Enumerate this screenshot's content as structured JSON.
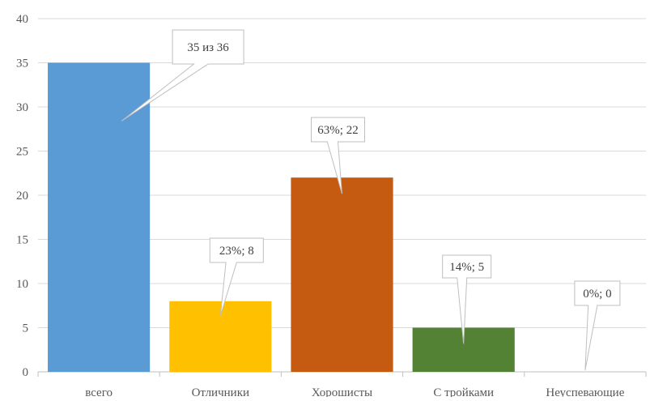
{
  "chart_data": {
    "type": "bar",
    "categories": [
      "всего",
      "Отличники",
      "Хорошисты",
      "С тройками",
      "Неуспевающие"
    ],
    "values": [
      35,
      8,
      22,
      5,
      0
    ],
    "data_labels": [
      "35 из  36",
      "23%; 8",
      "63%; 22",
      "14%; 5",
      "0%; 0"
    ],
    "colors": [
      "#5b9bd5",
      "#ffc000",
      "#c55a11",
      "#548235",
      "#a5a5a5"
    ],
    "ylim": [
      0,
      40
    ],
    "yticks": [
      0,
      5,
      10,
      15,
      20,
      25,
      30,
      35,
      40
    ],
    "grid": "horizontal",
    "legend": "none",
    "title": "",
    "xlabel": "",
    "ylabel": ""
  }
}
